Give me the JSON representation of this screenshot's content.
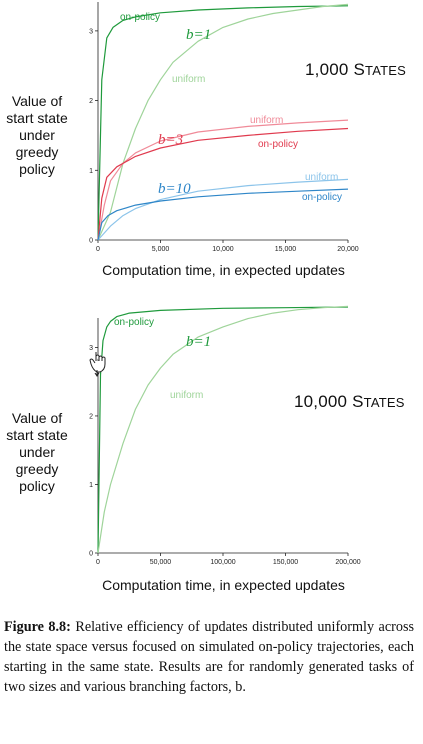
{
  "colors": {
    "green_dark": "#1f9a3c",
    "green_light": "#9fd49a",
    "red_dark": "#e03a4e",
    "red_light": "#f08a98",
    "blue_dark": "#2e86c8",
    "blue_light": "#8cc4ea"
  },
  "chart_data": [
    {
      "type": "line",
      "annotation": "1,000 States",
      "ylabel": "Value of start state under greedy policy",
      "xlabel": "Computation time, in expected updates",
      "xlim": [
        0,
        20000
      ],
      "ylim": [
        0,
        3.4
      ],
      "xticks": [
        0,
        5000,
        10000,
        15000,
        20000
      ],
      "xtick_labels": [
        "0",
        "5,000",
        "10,000",
        "15,000",
        "20,000"
      ],
      "yticks": [
        0,
        1,
        2,
        3
      ],
      "ytick_labels": [
        "0",
        "1",
        "2",
        "3"
      ],
      "groups": [
        {
          "label": "b=1",
          "series": [
            {
              "name": "on-policy",
              "color": "#1f9a3c",
              "x": [
                0,
                300,
                700,
                1200,
                2000,
                3000,
                5000,
                8000,
                12000,
                16000,
                20000
              ],
              "y": [
                0,
                2.3,
                2.9,
                3.05,
                3.15,
                3.2,
                3.26,
                3.3,
                3.33,
                3.35,
                3.36
              ]
            },
            {
              "name": "uniform",
              "color": "#9fd49a",
              "x": [
                0,
                1000,
                2000,
                3000,
                4000,
                5000,
                6000,
                8000,
                10000,
                12000,
                14000,
                16000,
                18000,
                20000
              ],
              "y": [
                0,
                0.4,
                1.1,
                1.6,
                2.0,
                2.3,
                2.55,
                2.85,
                3.05,
                3.17,
                3.25,
                3.3,
                3.35,
                3.38
              ]
            }
          ]
        },
        {
          "label": "b=3",
          "series": [
            {
              "name": "uniform",
              "color": "#f08a98",
              "x": [
                0,
                500,
                1000,
                2000,
                3000,
                5000,
                8000,
                12000,
                16000,
                20000
              ],
              "y": [
                0,
                0.5,
                0.85,
                1.1,
                1.25,
                1.42,
                1.55,
                1.63,
                1.68,
                1.72
              ]
            },
            {
              "name": "on-policy",
              "color": "#e03a4e",
              "x": [
                0,
                300,
                700,
                1500,
                3000,
                5000,
                8000,
                12000,
                16000,
                20000
              ],
              "y": [
                0,
                0.6,
                0.9,
                1.05,
                1.2,
                1.32,
                1.43,
                1.5,
                1.56,
                1.6
              ]
            }
          ]
        },
        {
          "label": "b=10",
          "series": [
            {
              "name": "uniform",
              "color": "#8cc4ea",
              "x": [
                0,
                1000,
                2000,
                3000,
                5000,
                8000,
                12000,
                16000,
                20000
              ],
              "y": [
                0,
                0.2,
                0.35,
                0.45,
                0.58,
                0.7,
                0.78,
                0.83,
                0.87
              ]
            },
            {
              "name": "on-policy",
              "color": "#2e86c8",
              "x": [
                0,
                300,
                800,
                1500,
                3000,
                5000,
                8000,
                12000,
                16000,
                20000
              ],
              "y": [
                0,
                0.25,
                0.35,
                0.42,
                0.5,
                0.56,
                0.62,
                0.67,
                0.7,
                0.73
              ]
            }
          ]
        }
      ]
    },
    {
      "type": "line",
      "annotation": "10,000 States",
      "ylabel": "Value of start state under greedy policy",
      "xlabel": "Computation time, in expected updates",
      "xlim": [
        0,
        200000
      ],
      "ylim": [
        0,
        3.4
      ],
      "xticks": [
        0,
        50000,
        100000,
        150000,
        200000
      ],
      "xtick_labels": [
        "0",
        "50,000",
        "100,000",
        "150,000",
        "200,000"
      ],
      "yticks": [
        0,
        1,
        2,
        3
      ],
      "ytick_labels": [
        "0",
        "1",
        "2",
        "3"
      ],
      "groups": [
        {
          "label": "b=1",
          "series": [
            {
              "name": "on-policy",
              "color": "#1f9a3c",
              "x": [
                0,
                2000,
                4000,
                7000,
                10000,
                15000,
                25000,
                50000,
                100000,
                150000,
                200000
              ],
              "y": [
                0,
                2.6,
                3.1,
                3.3,
                3.38,
                3.45,
                3.5,
                3.54,
                3.57,
                3.58,
                3.59
              ]
            },
            {
              "name": "uniform",
              "color": "#9fd49a",
              "x": [
                0,
                5000,
                10000,
                20000,
                30000,
                40000,
                50000,
                60000,
                80000,
                100000,
                120000,
                140000,
                160000,
                180000,
                200000
              ],
              "y": [
                0,
                0.6,
                1.0,
                1.6,
                2.1,
                2.45,
                2.7,
                2.9,
                3.15,
                3.3,
                3.42,
                3.5,
                3.55,
                3.58,
                3.6
              ]
            }
          ]
        }
      ]
    }
  ],
  "caption": {
    "label": "Figure 8.8:",
    "text": "Relative efficiency of updates distributed uniformly across the state space versus focused on simulated on-policy trajectories, each starting in the same state. Results are for randomly generated tasks of two sizes and various branching factors, b."
  }
}
